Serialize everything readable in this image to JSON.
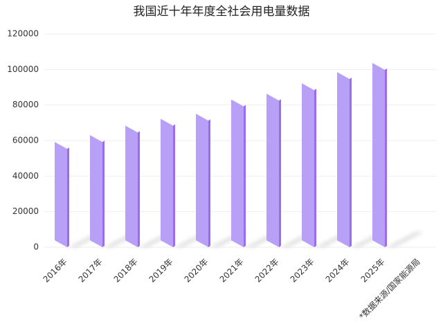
{
  "chart_data": {
    "type": "bar",
    "title": "我国近十年年度全社会用电量数据",
    "categories": [
      "2016年",
      "2017年",
      "2018年",
      "2019年",
      "2020年",
      "2021年",
      "2022年",
      "2023年",
      "2024年",
      "2025年"
    ],
    "values": [
      59198,
      63077,
      68449,
      72255,
      75110,
      83128,
      86372,
      92241,
      98521,
      103682
    ],
    "color": "#b9a0f7",
    "ylim": [
      0,
      120000
    ],
    "yticks": [
      0,
      20000,
      40000,
      60000,
      80000,
      100000,
      120000
    ],
    "grid": true,
    "annotation": "*数据来源/国家能源局"
  }
}
